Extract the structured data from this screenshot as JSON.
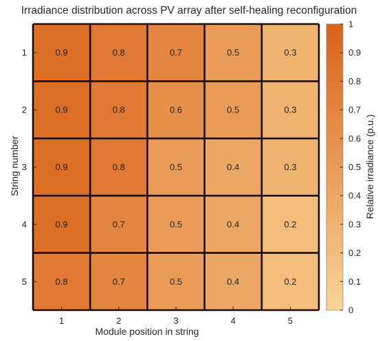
{
  "chart_data": {
    "type": "heatmap",
    "title": "Irradiance distribution across PV array after self-healing reconfiguration",
    "xlabel": "Module position in string",
    "ylabel": "String number",
    "x_categories": [
      "1",
      "2",
      "3",
      "4",
      "5"
    ],
    "y_categories": [
      "1",
      "2",
      "3",
      "4",
      "5"
    ],
    "values": [
      [
        0.9,
        0.8,
        0.7,
        0.5,
        0.3
      ],
      [
        0.9,
        0.8,
        0.6,
        0.5,
        0.3
      ],
      [
        0.9,
        0.8,
        0.5,
        0.4,
        0.3
      ],
      [
        0.9,
        0.7,
        0.5,
        0.4,
        0.2
      ],
      [
        0.8,
        0.7,
        0.5,
        0.4,
        0.2
      ]
    ],
    "cell_labels": [
      [
        "0.9",
        "0.8",
        "0.7",
        "0.5",
        "0.3"
      ],
      [
        "0.9",
        "0.8",
        "0.6",
        "0.5",
        "0.3"
      ],
      [
        "0.9",
        "0.8",
        "0.5",
        "0.4",
        "0.3"
      ],
      [
        "0.9",
        "0.7",
        "0.5",
        "0.4",
        "0.2"
      ],
      [
        "0.8",
        "0.7",
        "0.5",
        "0.4",
        "0.2"
      ]
    ],
    "colorbar": {
      "label": "Relative irradiance (p.u.)",
      "range": [
        0,
        1
      ],
      "ticks": [
        "0",
        "0.1",
        "0.2",
        "0.3",
        "0.4",
        "0.5",
        "0.6",
        "0.7",
        "0.8",
        "0.9",
        "1"
      ],
      "color_low": "#f9d595",
      "color_high": "#d9621a"
    },
    "grid_line_color": "#1a0a05"
  }
}
